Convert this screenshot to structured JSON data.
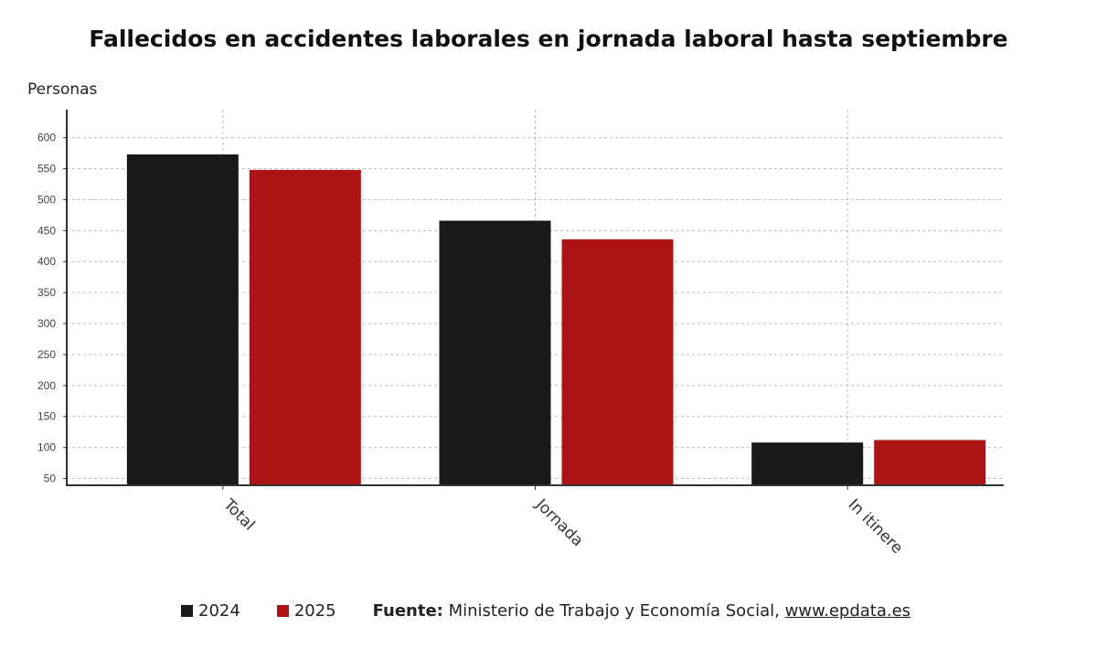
{
  "chart_data": {
    "type": "bar",
    "title": "Fallecidos en accidentes laborales en jornada laboral hasta septiembre",
    "ylabel": "Personas",
    "xlabel": "",
    "categories": [
      "Total",
      "Jornada",
      "In itinere"
    ],
    "series": [
      {
        "name": "2024",
        "color": "#1a1819",
        "values": [
          573,
          466,
          108
        ]
      },
      {
        "name": "2025",
        "color": "#ae1415",
        "values": [
          548,
          436,
          112
        ]
      }
    ],
    "ylim": [
      39,
      640
    ],
    "yticks": [
      50,
      100,
      150,
      200,
      250,
      300,
      350,
      400,
      450,
      500,
      550,
      600
    ],
    "grid": true,
    "legend": "bottom-left"
  },
  "source": {
    "label": "Fuente:",
    "text": "Ministerio de Trabajo y Economía Social,",
    "link": "www.epdata.es"
  }
}
